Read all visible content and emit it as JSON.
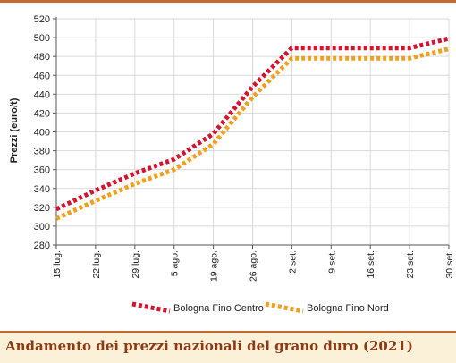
{
  "chart_data": {
    "type": "line",
    "title": "",
    "xlabel": "",
    "ylabel": "Prezzi (euro/t)",
    "ylim": [
      280,
      520
    ],
    "yticks": [
      280,
      300,
      320,
      340,
      360,
      380,
      400,
      420,
      440,
      460,
      480,
      500,
      520
    ],
    "categories": [
      "15 lug.",
      "22 lug.",
      "29 lug.",
      "5 ago.",
      "19 ago.",
      "26 ago.",
      "2 set.",
      "9 set.",
      "16 set.",
      "23 set.",
      "30 set."
    ],
    "series": [
      {
        "name": "Bologna Fino Centro",
        "color": "#d7122e",
        "values": [
          318,
          338,
          356,
          371,
          398,
          448,
          489,
          489,
          489,
          489,
          499
        ]
      },
      {
        "name": "Bologna Fino Nord",
        "color": "#f0a020",
        "values": [
          308,
          327,
          345,
          360,
          387,
          437,
          478,
          478,
          478,
          478,
          488
        ]
      }
    ],
    "grid": true,
    "legend_position": "bottom"
  },
  "caption": {
    "text": "Andamento dei prezzi nazionali del grano duro (2021)",
    "color": "#8b3a14",
    "background": "#fbf1d9"
  }
}
